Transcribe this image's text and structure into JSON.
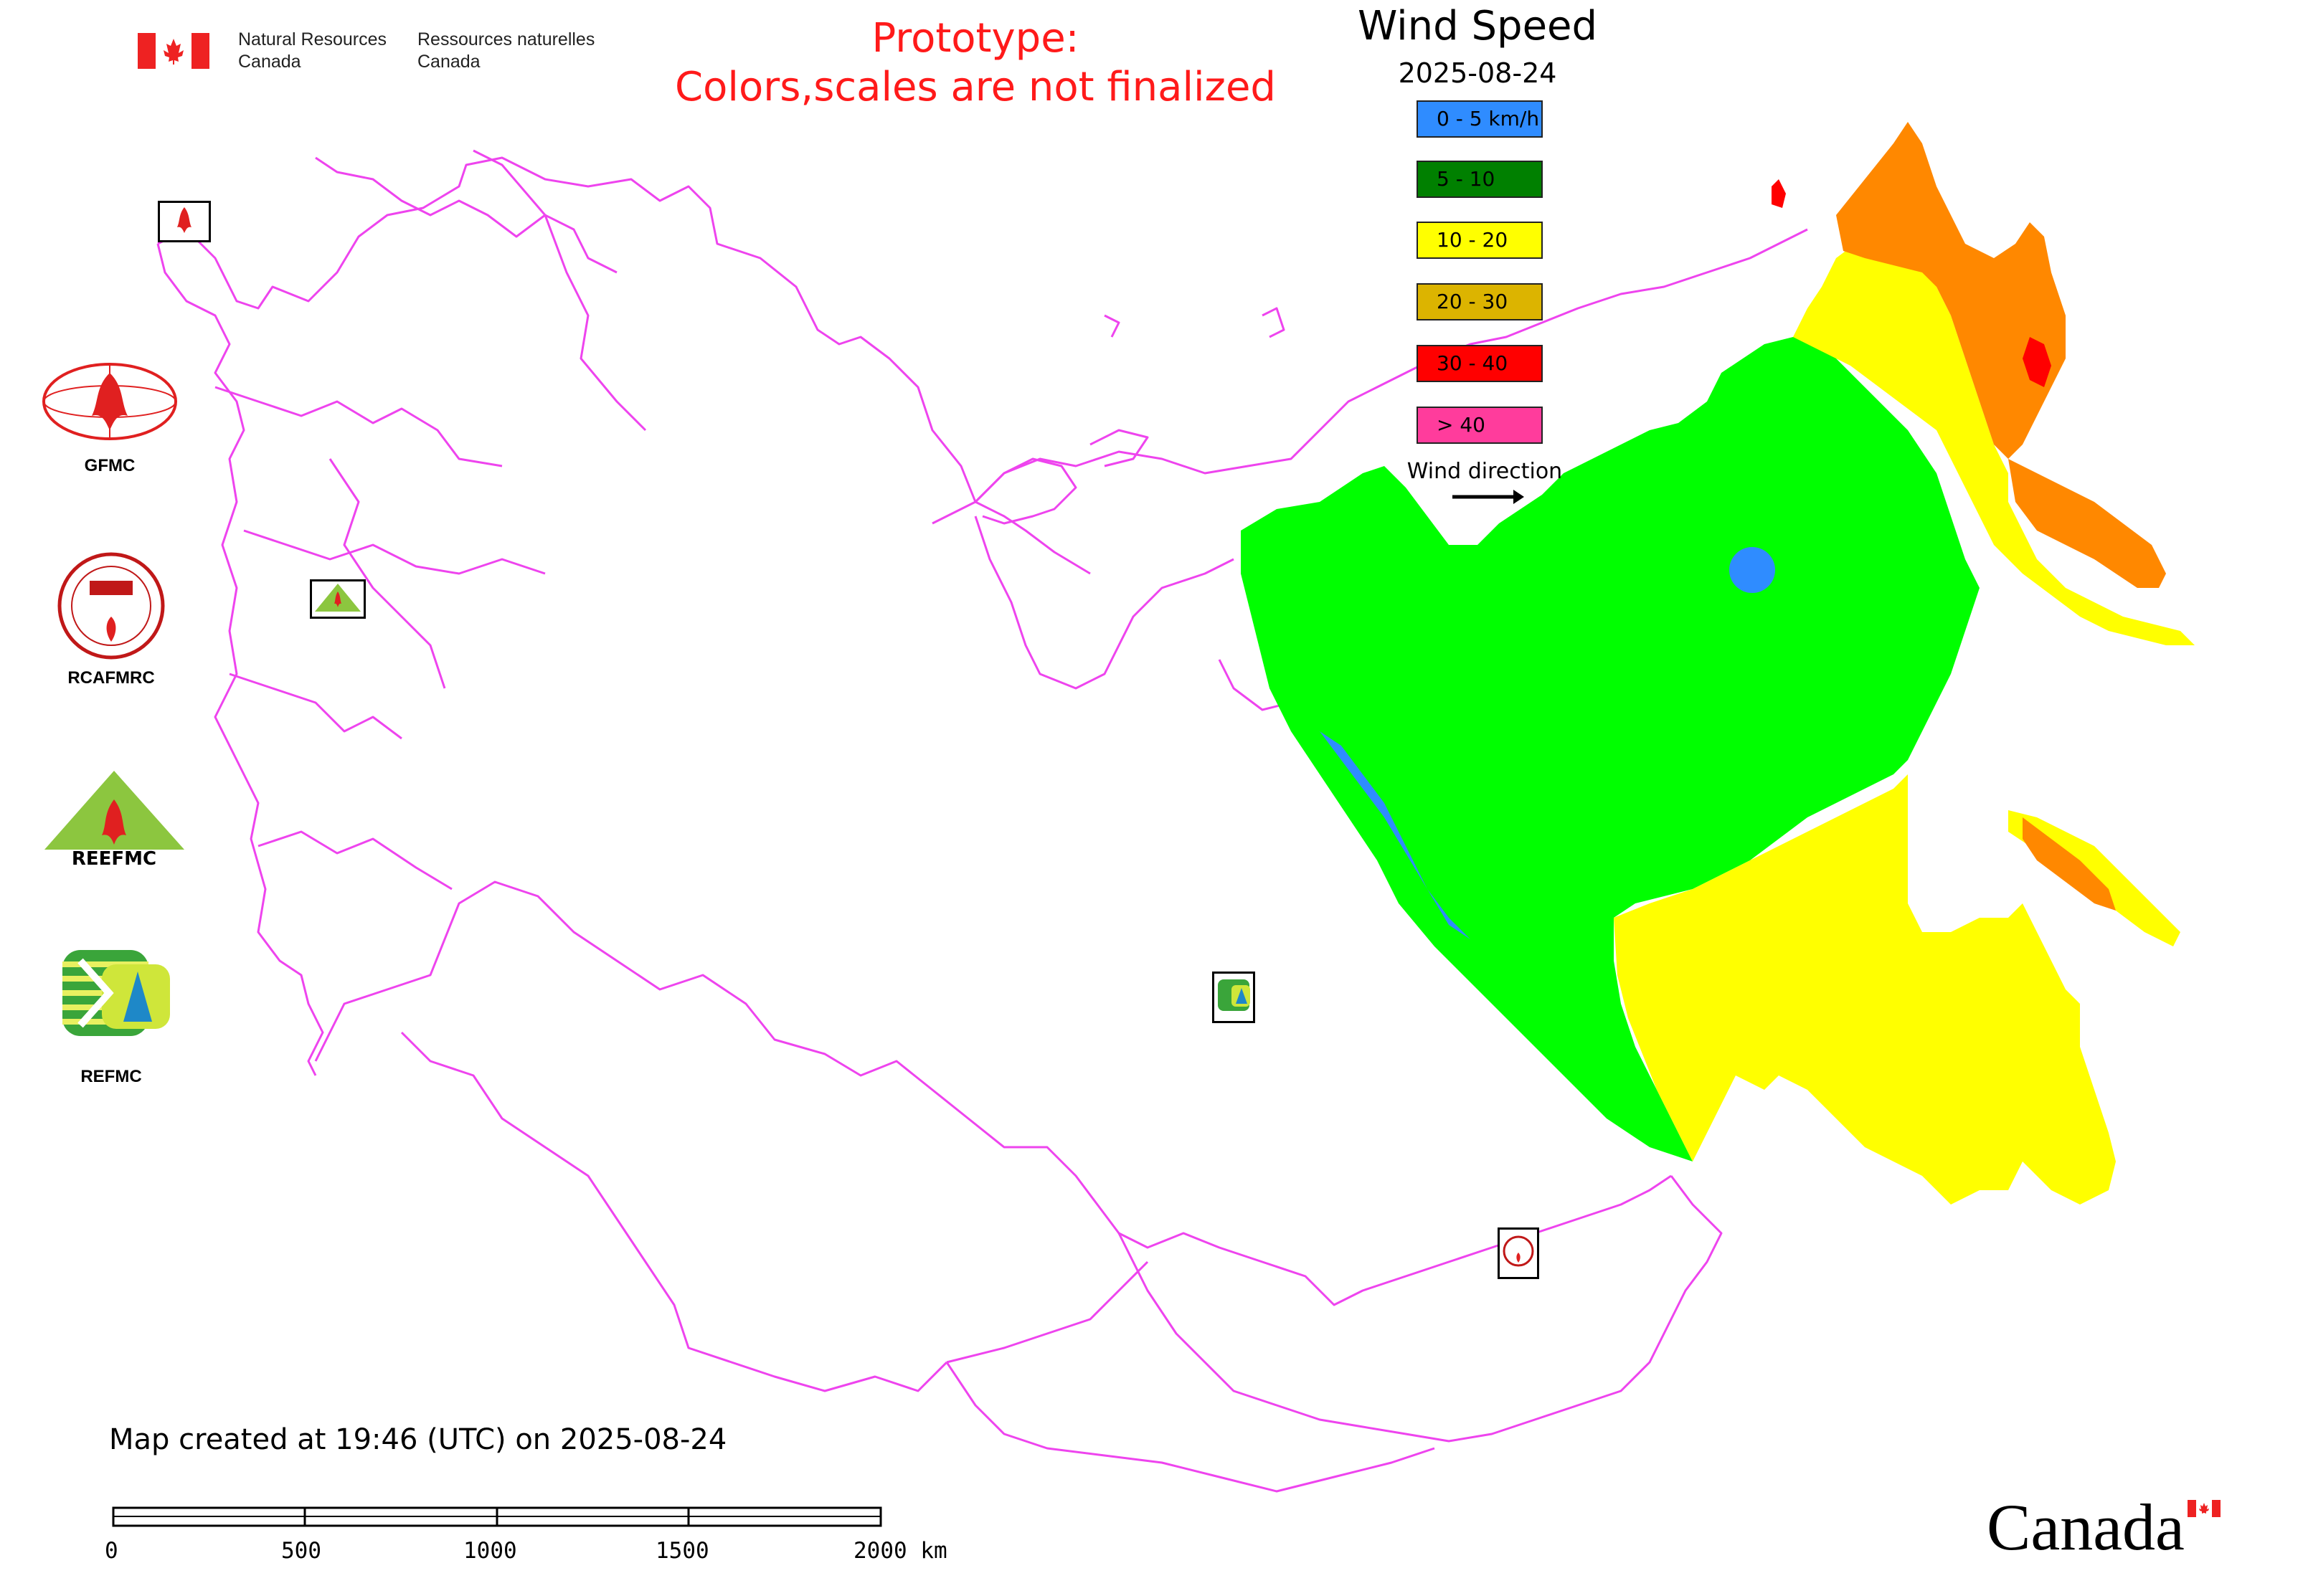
{
  "header": {
    "agency_en_1": "Natural Resources",
    "agency_en_2": "Canada",
    "agency_fr_1": "Ressources naturelles",
    "agency_fr_2": "Canada"
  },
  "notice": {
    "line1": "Prototype:",
    "line2": "Colors,scales are not finalized",
    "color": "#ff1a1a"
  },
  "map_title": "Wind Speed",
  "map_date": "2025-08-24",
  "legend": {
    "items": [
      {
        "label": "0 - 5 km/h",
        "color": "#2f8cff"
      },
      {
        "label": "5 - 10",
        "color": "#008000"
      },
      {
        "label": "10 - 20",
        "color": "#ffff00"
      },
      {
        "label": "20 - 30",
        "color": "#dcb400"
      },
      {
        "label": "30 - 40",
        "color": "#ff0000"
      },
      {
        "label": "> 40",
        "color": "#ff3c9c"
      }
    ],
    "direction_label": "Wind direction"
  },
  "organizations": [
    {
      "label": "GFMC",
      "icon": "gfmc-logo"
    },
    {
      "label": "RCAFMRC",
      "icon": "rcafmrc-logo"
    },
    {
      "label": "",
      "icon": "reefmc-logo"
    },
    {
      "label": "REFMC",
      "icon": "refmc-logo"
    }
  ],
  "footer": {
    "created": "Map created at 19:46 (UTC) on 2025-08-24",
    "wordmark": "Canada"
  },
  "scale_bar": {
    "ticks": [
      "0",
      "500",
      "1000",
      "1500",
      "2000 km"
    ]
  },
  "colors": {
    "boundary": "#ee44ee",
    "zone_green": "#00ff00",
    "zone_yellow": "#ffff00",
    "zone_orange": "#ff8800",
    "zone_red": "#ff0000",
    "zone_blue": "#2f8cff"
  }
}
